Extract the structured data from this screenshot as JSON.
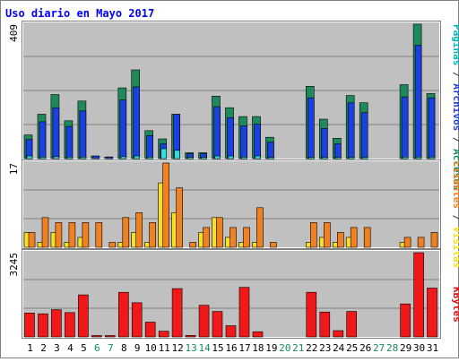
{
  "title": "Uso diario en Mayo 2017",
  "right_label": {
    "top_parts": [
      {
        "text": "Páginas",
        "color": "#00b4b4"
      },
      {
        "text": " / ",
        "color": "#333333"
      },
      {
        "text": "Archivos",
        "color": "#2040d0"
      },
      {
        "text": " / ",
        "color": "#333333"
      },
      {
        "text": "Accesos",
        "color": "#1a8a5a"
      }
    ],
    "mid_parts": [
      {
        "text": "Clientes",
        "color": "#f08020"
      },
      {
        "text": " / ",
        "color": "#333333"
      },
      {
        "text": "Visitas",
        "color": "#f0e020"
      }
    ],
    "bottom_parts": [
      {
        "text": "KBytes",
        "color": "#e01010"
      }
    ]
  },
  "colors": {
    "plot_bg": "#c0c0c0",
    "accesos": "#1e8a5a",
    "archivos": "#1a40e0",
    "paginas": "#30e0e0",
    "visitas": "#f8e020",
    "clientes": "#f08020",
    "kbytes": "#f01818",
    "weekday": "#000000",
    "weekend": "#1a8a5a"
  },
  "chart_data": [
    {
      "type": "bar",
      "panel": "top",
      "ylabel": "409",
      "ylim": [
        0,
        409
      ],
      "categories": [
        "1",
        "2",
        "3",
        "4",
        "5",
        "6",
        "7",
        "8",
        "9",
        "10",
        "11",
        "12",
        "13",
        "14",
        "15",
        "16",
        "17",
        "18",
        "19",
        "20",
        "21",
        "22",
        "23",
        "24",
        "25",
        "26",
        "27",
        "28",
        "29",
        "30",
        "31"
      ],
      "weekend_days": [
        "6",
        "7",
        "13",
        "14",
        "20",
        "21",
        "27",
        "28"
      ],
      "series": [
        {
          "name": "Accesos",
          "values": [
            72,
            135,
            195,
            115,
            175,
            8,
            5,
            215,
            270,
            85,
            60,
            135,
            18,
            18,
            190,
            155,
            128,
            128,
            65,
            0,
            0,
            220,
            120,
            62,
            192,
            170,
            0,
            0,
            225,
            409,
            198
          ]
        },
        {
          "name": "Archivos",
          "values": [
            58,
            112,
            155,
            98,
            145,
            8,
            5,
            178,
            218,
            70,
            45,
            135,
            15,
            15,
            158,
            125,
            100,
            105,
            50,
            0,
            0,
            185,
            92,
            45,
            170,
            140,
            0,
            0,
            188,
            345,
            185
          ]
        },
        {
          "name": "Páginas",
          "values": [
            8,
            5,
            6,
            5,
            5,
            0,
            0,
            6,
            8,
            5,
            30,
            25,
            2,
            2,
            8,
            8,
            5,
            8,
            2,
            0,
            0,
            4,
            4,
            3,
            4,
            4,
            0,
            0,
            5,
            5,
            5
          ]
        }
      ]
    },
    {
      "type": "bar",
      "panel": "middle",
      "ylabel": "17",
      "ylim": [
        0,
        17
      ],
      "categories": [
        "1",
        "2",
        "3",
        "4",
        "5",
        "6",
        "7",
        "8",
        "9",
        "10",
        "11",
        "12",
        "13",
        "14",
        "15",
        "16",
        "17",
        "18",
        "19",
        "20",
        "21",
        "22",
        "23",
        "24",
        "25",
        "26",
        "27",
        "28",
        "29",
        "30",
        "31"
      ],
      "series": [
        {
          "name": "Visitas",
          "values": [
            3,
            1,
            3,
            1,
            2,
            0,
            0,
            1,
            3,
            1,
            13,
            7,
            0,
            3,
            6,
            2,
            1,
            1,
            0,
            0,
            0,
            1,
            2,
            1,
            2,
            0,
            0,
            0,
            1,
            0,
            0
          ]
        },
        {
          "name": "Clientes",
          "values": [
            3,
            6,
            5,
            5,
            5,
            5,
            1,
            6,
            7,
            5,
            17,
            12,
            1,
            4,
            6,
            4,
            4,
            8,
            1,
            0,
            0,
            5,
            5,
            3,
            4,
            4,
            0,
            0,
            2,
            2,
            3
          ]
        }
      ]
    },
    {
      "type": "bar",
      "panel": "bottom",
      "ylabel": "3245",
      "ylim": [
        0,
        3245
      ],
      "categories": [
        "1",
        "2",
        "3",
        "4",
        "5",
        "6",
        "7",
        "8",
        "9",
        "10",
        "11",
        "12",
        "13",
        "14",
        "15",
        "16",
        "17",
        "18",
        "19",
        "20",
        "21",
        "22",
        "23",
        "24",
        "25",
        "26",
        "27",
        "28",
        "29",
        "30",
        "31"
      ],
      "series": [
        {
          "name": "KBytes",
          "values": [
            920,
            890,
            1050,
            940,
            1620,
            40,
            40,
            1720,
            1320,
            570,
            220,
            1860,
            60,
            1220,
            980,
            430,
            1910,
            200,
            0,
            0,
            0,
            1720,
            960,
            240,
            980,
            0,
            0,
            0,
            1270,
            3245,
            1880
          ]
        }
      ]
    }
  ]
}
